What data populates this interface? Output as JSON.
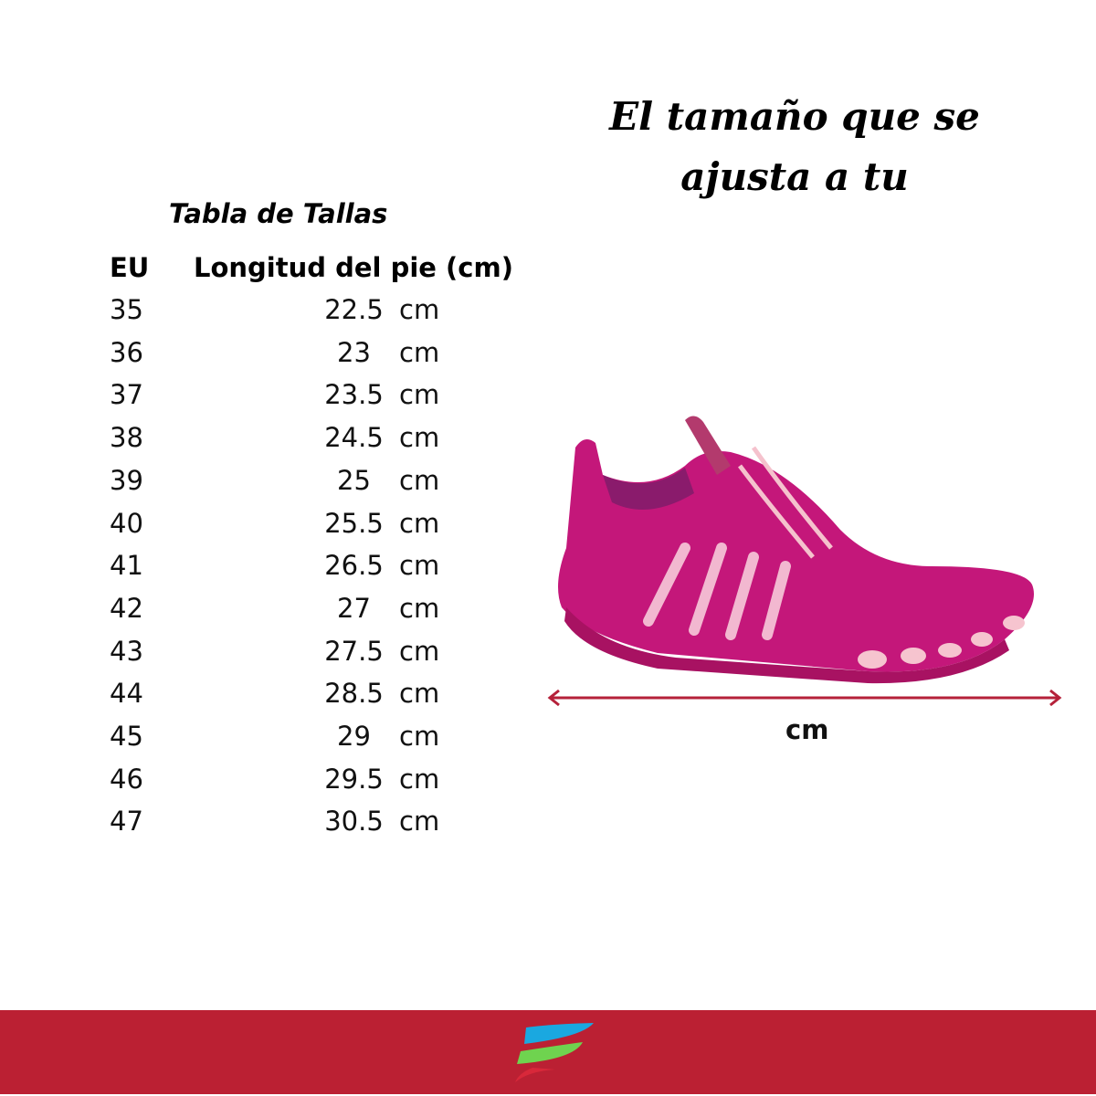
{
  "headline": {
    "line1": "El tamaño que se",
    "line2": "ajusta a tu"
  },
  "size_table": {
    "title": "Tabla de Tallas",
    "headers": {
      "eu": "EU",
      "length": "Longitud del pie (cm)"
    },
    "unit": "cm",
    "rows": [
      {
        "eu": "35",
        "length": "22.5"
      },
      {
        "eu": "36",
        "length": "23"
      },
      {
        "eu": "37",
        "length": "23.5"
      },
      {
        "eu": "38",
        "length": "24.5"
      },
      {
        "eu": "39",
        "length": "25"
      },
      {
        "eu": "40",
        "length": "25.5"
      },
      {
        "eu": "41",
        "length": "26.5"
      },
      {
        "eu": "42",
        "length": "27"
      },
      {
        "eu": "43",
        "length": "27.5"
      },
      {
        "eu": "44",
        "length": "28.5"
      },
      {
        "eu": "45",
        "length": "29"
      },
      {
        "eu": "46",
        "length": "29.5"
      },
      {
        "eu": "47",
        "length": "30.5"
      }
    ]
  },
  "measure": {
    "label": "cm",
    "arrow_color": "#b5213a"
  },
  "shoe": {
    "color": "#c4177a",
    "sole_accent": "#f4b8c8"
  },
  "footer": {
    "background": "#bb2033",
    "logo_colors": [
      "#1aa8e0",
      "#6fd34f",
      "#d8283a"
    ]
  }
}
